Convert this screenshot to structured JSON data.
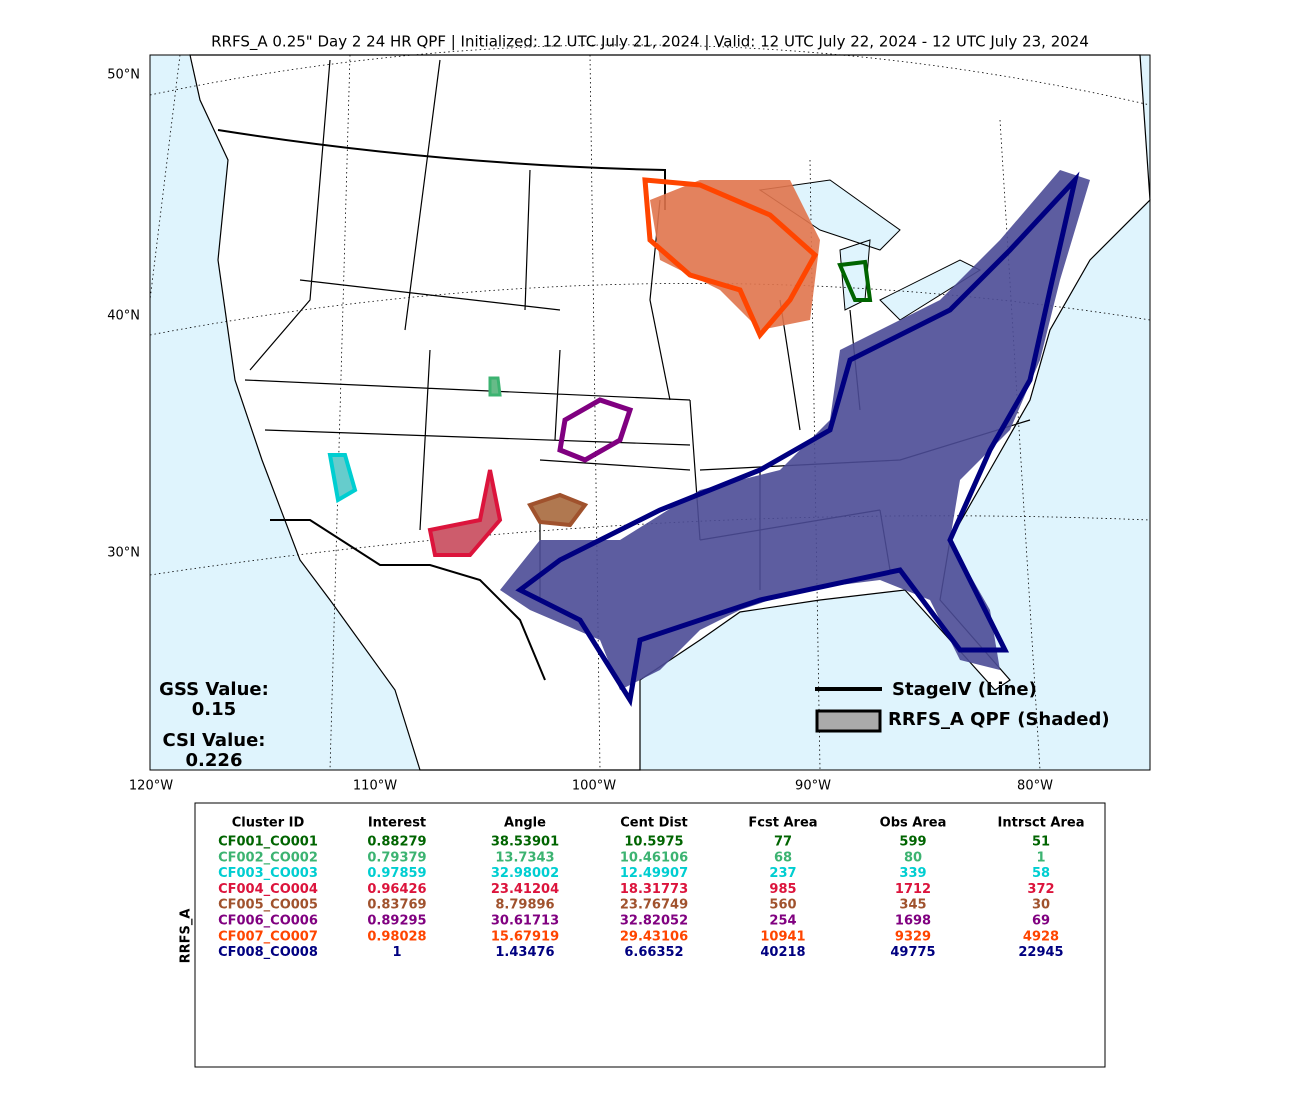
{
  "title": "RRFS_A 0.25\" Day 2 24 HR QPF | Initialized: 12 UTC July 21, 2024 | Valid: 12 UTC July 22, 2024 - 12 UTC July 23, 2024",
  "map": {
    "lat_labels": [
      "50°N",
      "40°N",
      "30°N"
    ],
    "lon_labels": [
      "120°W",
      "110°W",
      "100°W",
      "90°W",
      "80°W"
    ],
    "gss_label": "GSS Value:",
    "gss_value": "0.15",
    "csi_label": "CSI Value:",
    "csi_value": "0.226",
    "legend": [
      "StageIV (Line)",
      "RRFS_A QPF (Shaded)"
    ]
  },
  "table": {
    "side_label": "RRFS_A",
    "columns": [
      "Cluster ID",
      "Interest",
      "Angle",
      "Cent Dist",
      "Fcst Area",
      "Obs Area",
      "Intrsct Area"
    ],
    "rows": [
      [
        "CF001_CO001",
        "0.88279",
        "38.53901",
        "10.5975",
        "77",
        "599",
        "51"
      ],
      [
        "CF002_CO002",
        "0.79379",
        "13.7343",
        "10.46106",
        "68",
        "80",
        "1"
      ],
      [
        "CF003_CO003",
        "0.97859",
        "32.98002",
        "12.49907",
        "237",
        "339",
        "58"
      ],
      [
        "CF004_CO004",
        "0.96426",
        "23.41204",
        "18.31773",
        "985",
        "1712",
        "372"
      ],
      [
        "CF005_CO005",
        "0.83769",
        "8.79896",
        "23.76749",
        "560",
        "345",
        "30"
      ],
      [
        "CF006_CO006",
        "0.89295",
        "30.61713",
        "32.82052",
        "254",
        "1698",
        "69"
      ],
      [
        "CF007_CO007",
        "0.98028",
        "15.67919",
        "29.43106",
        "10941",
        "9329",
        "4928"
      ],
      [
        "CF008_CO008",
        "1",
        "1.43476",
        "6.66352",
        "40218",
        "49775",
        "22945"
      ]
    ],
    "row_colors": [
      "#006400",
      "#3cb371",
      "#00ced1",
      "#dc143c",
      "#a0522d",
      "#800080",
      "#ff4500",
      "#000080"
    ]
  }
}
